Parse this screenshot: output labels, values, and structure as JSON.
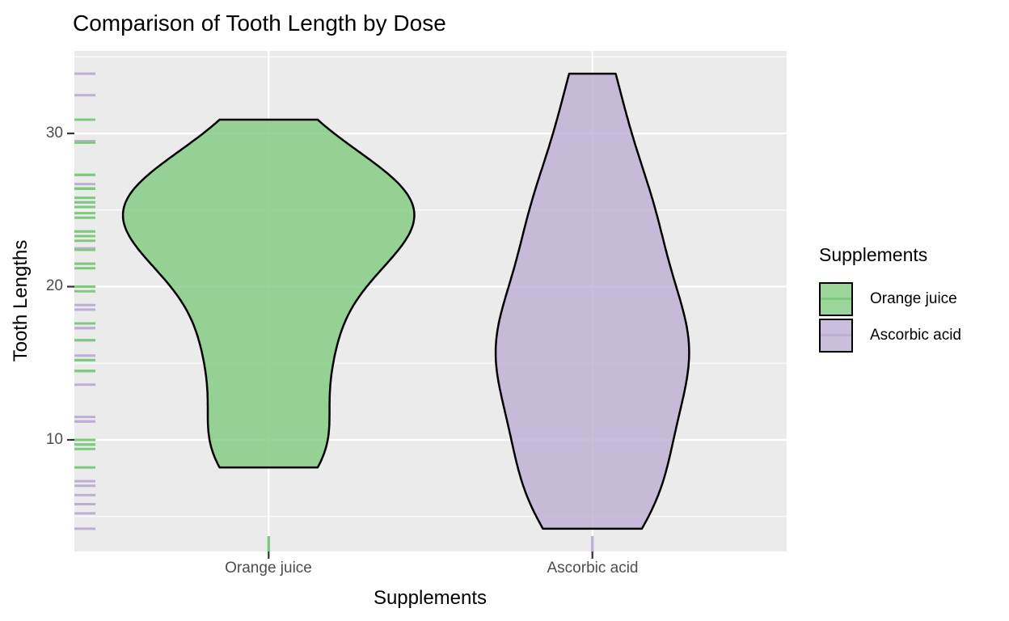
{
  "title": "Comparison of Tooth Length by Dose",
  "axes": {
    "x": {
      "label": "Supplements",
      "categories": [
        "Orange juice",
        "Ascorbic acid"
      ]
    },
    "y": {
      "label": "Tooth Lengths",
      "tick_labels": [
        "30",
        "20",
        "10"
      ],
      "tick_values": [
        30,
        20,
        10
      ]
    }
  },
  "legend": {
    "title": "Supplements",
    "position": "right",
    "items": [
      {
        "label": "Orange juice",
        "color": "#7FC97F"
      },
      {
        "label": "Ascorbic acid",
        "color": "#BEAED4"
      }
    ]
  },
  "colors": {
    "panel_background": "#EBEBEB",
    "gridline": "#FFFFFF",
    "violin_outline": "#000000",
    "axis_tick": "#333333",
    "tick_label": "#4D4D4D",
    "orange_juice": "#7FC97F",
    "ascorbic_acid": "#BEAED4"
  },
  "chart_data": {
    "type": "violin",
    "title": "Comparison of Tooth Length by Dose",
    "xlabel": "Supplements",
    "ylabel": "Tooth Lengths",
    "legend_title": "Supplements",
    "legend_position": "right",
    "grid": true,
    "y_major_gridlines": [
      10,
      20,
      30
    ],
    "y_minor_gridlines": [
      5,
      15,
      25,
      35
    ],
    "y_range_shown": [
      2.7,
      35.4
    ],
    "fill_alpha": 0.8,
    "rug": {
      "left": true,
      "bottom": true
    },
    "categories": [
      "Orange juice",
      "Ascorbic acid"
    ],
    "groups": [
      {
        "name": "Orange juice",
        "color": "#7FC97F",
        "n": 30,
        "min": 8.2,
        "max": 30.9,
        "values": [
          15.2,
          21.5,
          17.6,
          9.7,
          14.5,
          10.0,
          8.2,
          9.4,
          16.5,
          9.7,
          19.7,
          23.3,
          23.6,
          26.4,
          20.0,
          25.2,
          25.8,
          21.2,
          14.5,
          27.3,
          25.5,
          26.4,
          22.4,
          24.5,
          24.8,
          30.9,
          26.4,
          27.3,
          29.4,
          23.0
        ]
      },
      {
        "name": "Ascorbic acid",
        "color": "#BEAED4",
        "n": 30,
        "min": 4.2,
        "max": 33.9,
        "values": [
          4.2,
          11.5,
          7.3,
          5.8,
          6.4,
          10.0,
          11.2,
          11.2,
          5.2,
          7.0,
          16.5,
          16.5,
          15.2,
          17.3,
          22.5,
          17.3,
          13.6,
          14.5,
          18.8,
          15.5,
          23.6,
          18.5,
          33.9,
          25.5,
          26.4,
          32.5,
          26.7,
          21.5,
          23.3,
          29.5
        ]
      }
    ]
  }
}
